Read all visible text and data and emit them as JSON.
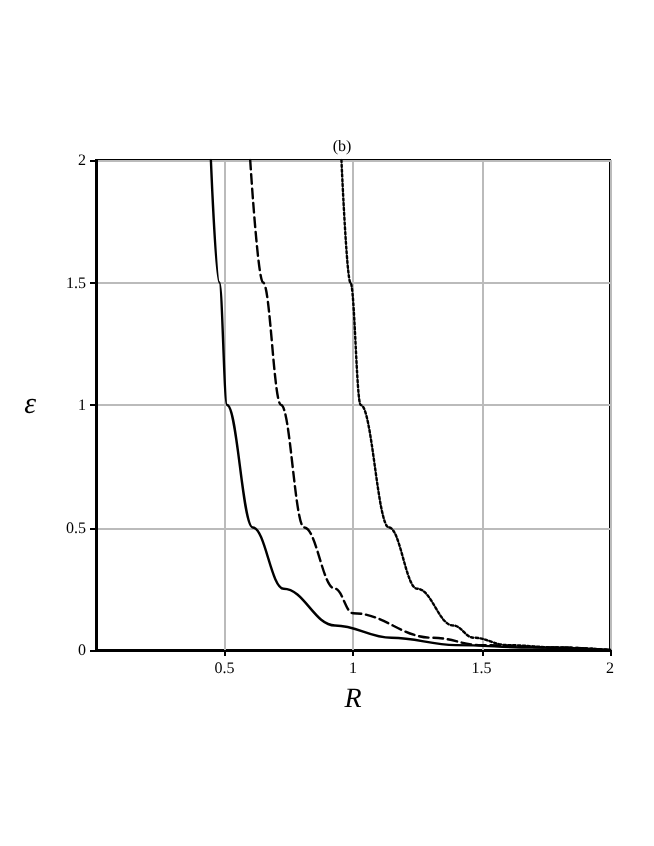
{
  "chart_data": {
    "type": "line",
    "title": "(b)",
    "xlabel": "R",
    "ylabel": "ε",
    "xlim": [
      0,
      2
    ],
    "ylim": [
      0,
      2
    ],
    "xticks": [
      0.5,
      1,
      1.5,
      2
    ],
    "yticks": [
      0,
      0.5,
      1,
      1.5,
      2
    ],
    "grid": true,
    "marker": "none",
    "series": [
      {
        "color": "#000000",
        "line_style": "solid",
        "x": [
          0.447,
          0.48,
          0.51,
          0.61,
          0.73,
          0.93,
          1.15,
          1.4,
          1.7,
          2
        ],
        "values": [
          2,
          1.5,
          1,
          0.5,
          0.25,
          0.1,
          0.05,
          0.02,
          0.01,
          0
        ]
      },
      {
        "color": "#000000",
        "line_style": "dashed",
        "x": [
          0.6,
          0.65,
          0.72,
          0.81,
          0.93,
          1.0,
          1.31,
          1.5,
          1.8,
          2
        ],
        "values": [
          2,
          1.5,
          1,
          0.5,
          0.25,
          0.15,
          0.05,
          0.02,
          0.01,
          0
        ]
      },
      {
        "color": "#000000",
        "line_style": "dotted",
        "x": [
          0.955,
          0.99,
          1.03,
          1.14,
          1.25,
          1.39,
          1.47,
          1.6,
          1.8,
          2
        ],
        "values": [
          2,
          1.5,
          1,
          0.5,
          0.25,
          0.1,
          0.05,
          0.02,
          0.01,
          0
        ]
      }
    ]
  }
}
